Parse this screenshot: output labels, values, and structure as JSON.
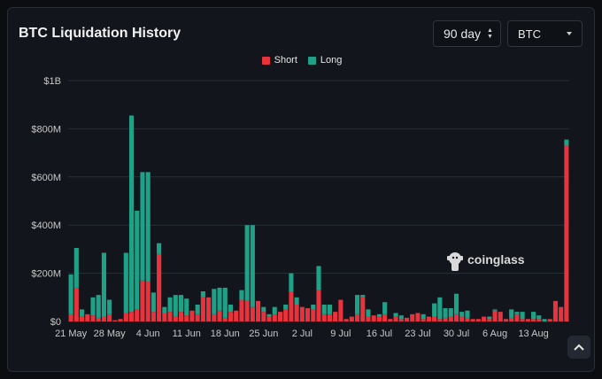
{
  "header": {
    "title": "BTC Liquidation History"
  },
  "controls": {
    "period": "90 day",
    "period_icon": "sort-updown-icon",
    "coin": "BTC",
    "coin_icon": "caret-down-icon"
  },
  "watermark": {
    "text": "coinglass",
    "icon": "coinglass-logo-icon"
  },
  "scroll_top": {
    "icon": "chevron-up-icon"
  },
  "colors": {
    "short": "#e8323c",
    "long": "#1fa188",
    "background": "#12151b"
  },
  "chart_data": {
    "type": "bar",
    "stacked": true,
    "legend": [
      {
        "name": "Short",
        "color": "#e8323c"
      },
      {
        "name": "Long",
        "color": "#1fa188"
      }
    ],
    "legend_position": "top",
    "y_ticks": [
      "$0",
      "$200M",
      "$400M",
      "$600M",
      "$800M",
      "$1B"
    ],
    "y_tick_values": [
      0,
      200,
      400,
      600,
      800,
      1000
    ],
    "ylim": [
      0,
      1000
    ],
    "y_unit": "USD millions",
    "x_tick_labels": [
      "21 May",
      "28 May",
      "4 Jun",
      "11 Jun",
      "18 Jun",
      "25 Jun",
      "2 Jul",
      "9 Jul",
      "16 Jul",
      "23 Jul",
      "30 Jul",
      "6 Aug",
      "13 Aug"
    ],
    "x_tick_index": [
      0,
      7,
      14,
      21,
      28,
      35,
      42,
      49,
      56,
      63,
      70,
      77,
      84
    ],
    "grid": "horizontal",
    "series": [
      {
        "name": "Short",
        "values": [
          30,
          140,
          20,
          30,
          25,
          15,
          20,
          30,
          5,
          10,
          35,
          40,
          50,
          170,
          165,
          40,
          280,
          35,
          40,
          20,
          40,
          25,
          45,
          30,
          100,
          100,
          30,
          45,
          15,
          40,
          45,
          90,
          85,
          60,
          85,
          40,
          20,
          30,
          40,
          50,
          125,
          70,
          60,
          55,
          50,
          130,
          30,
          30,
          40,
          90,
          10,
          20,
          30,
          100,
          20,
          25,
          20,
          30,
          10,
          20,
          10,
          15,
          30,
          35,
          10,
          20,
          20,
          10,
          15,
          20,
          30,
          20,
          15,
          10,
          10,
          20,
          10,
          45,
          40,
          10,
          15,
          30,
          10,
          10,
          10,
          10,
          0,
          10,
          85,
          60,
          730
        ]
      },
      {
        "name": "Long",
        "values": [
          165,
          165,
          30,
          0,
          75,
          95,
          265,
          60,
          0,
          0,
          250,
          815,
          410,
          450,
          455,
          80,
          45,
          25,
          60,
          90,
          70,
          70,
          0,
          40,
          25,
          0,
          105,
          95,
          125,
          30,
          0,
          40,
          315,
          340,
          0,
          20,
          10,
          30,
          0,
          20,
          75,
          30,
          0,
          0,
          20,
          100,
          40,
          40,
          0,
          0,
          0,
          0,
          80,
          10,
          30,
          0,
          10,
          50,
          0,
          15,
          15,
          0,
          0,
          0,
          20,
          0,
          55,
          90,
          40,
          35,
          85,
          20,
          30,
          0,
          0,
          0,
          10,
          5,
          0,
          0,
          35,
          10,
          30,
          0,
          30,
          15,
          10,
          0,
          0,
          0,
          25
        ]
      }
    ]
  }
}
